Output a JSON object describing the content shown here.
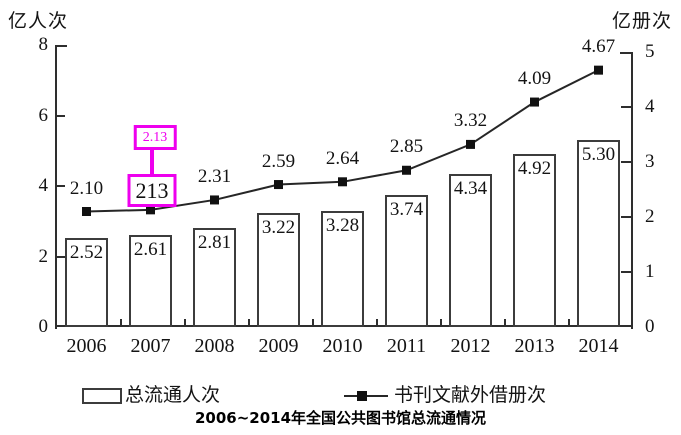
{
  "chart_data": {
    "type": "bar+line",
    "title": "2006~2014年全国公共图书馆总流通情况",
    "categories": [
      "2006",
      "2007",
      "2008",
      "2009",
      "2010",
      "2011",
      "2012",
      "2013",
      "2014"
    ],
    "series": [
      {
        "name": "总流通人次",
        "type": "bar",
        "axis": "left",
        "unit": "亿人次",
        "values": [
          2.52,
          2.61,
          2.81,
          3.22,
          3.28,
          3.74,
          4.34,
          4.92,
          5.3
        ],
        "labels": [
          "2.52",
          "2.61",
          "2.81",
          "3.22",
          "3.28",
          "3.74",
          "4.34",
          "4.92",
          "5.30"
        ]
      },
      {
        "name": "书刊文献外借册次",
        "type": "line",
        "axis": "right",
        "unit": "亿册次",
        "values": [
          2.1,
          2.13,
          2.31,
          2.59,
          2.64,
          2.85,
          3.32,
          4.09,
          4.67
        ],
        "labels": [
          "2.10",
          "2.13",
          "2.31",
          "2.59",
          "2.64",
          "2.85",
          "3.32",
          "4.09",
          "4.67"
        ]
      }
    ],
    "axes": {
      "left": {
        "title": "亿人次",
        "range": [
          0,
          8
        ],
        "ticks": [
          "0",
          "2",
          "4",
          "6",
          "8"
        ]
      },
      "right": {
        "title": "亿册次",
        "range": [
          0,
          5
        ],
        "ticks": [
          "0",
          "1",
          "2",
          "3",
          "4",
          "5"
        ]
      }
    },
    "legend": {
      "position": "bottom",
      "items": [
        "总流通人次",
        "书刊文献外借册次"
      ]
    },
    "grid": false
  },
  "annotation": {
    "target_category": "2007",
    "index": 1,
    "original_label": "213",
    "corrected_value": "2.13",
    "color": "#ee00ee"
  },
  "colors": {
    "background": "#ffffff",
    "axis": "#2e2e2e",
    "bar_border": "#3c3c3c",
    "line": "#262626",
    "marker": "#111111",
    "text": "#141414",
    "annotation": "#ee00ee"
  }
}
